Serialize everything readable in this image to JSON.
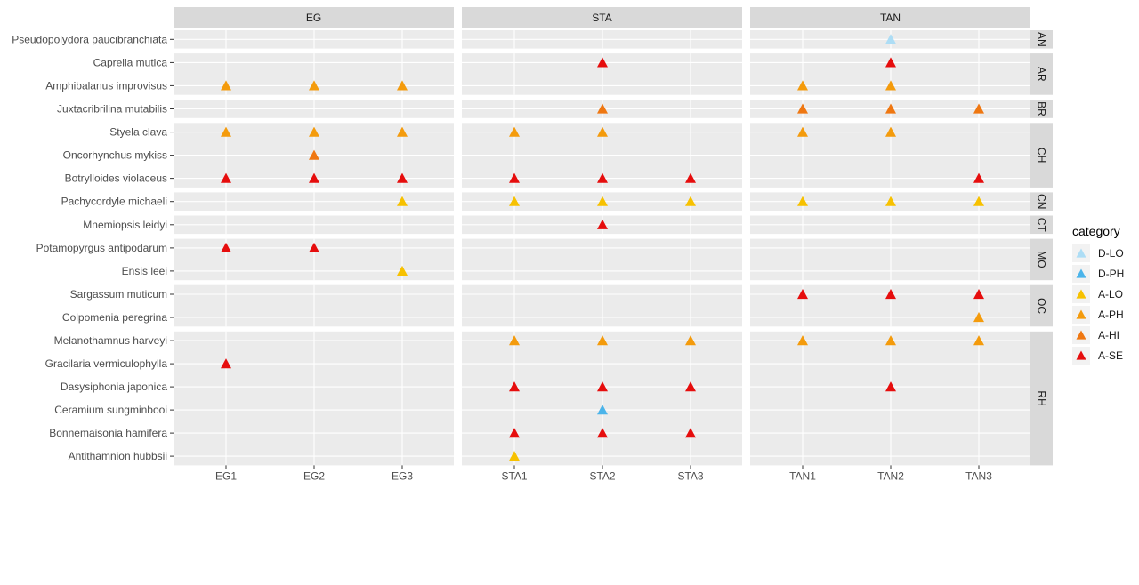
{
  "chart_data": {
    "type": "scatter",
    "marker": "triangle",
    "column_facets": [
      {
        "name": "EG",
        "x": [
          "EG1",
          "EG2",
          "EG3"
        ]
      },
      {
        "name": "STA",
        "x": [
          "STA1",
          "STA2",
          "STA3"
        ]
      },
      {
        "name": "TAN",
        "x": [
          "TAN1",
          "TAN2",
          "TAN3"
        ]
      }
    ],
    "row_facets": [
      {
        "name": "AN",
        "species": [
          "Pseudopolydora paucibranchiata"
        ]
      },
      {
        "name": "AR",
        "species": [
          "Caprella mutica",
          "Amphibalanus improvisus"
        ]
      },
      {
        "name": "BR",
        "species": [
          "Juxtacribrilina mutabilis"
        ]
      },
      {
        "name": "CH",
        "species": [
          "Styela clava",
          "Oncorhynchus mykiss",
          "Botrylloides violaceus"
        ]
      },
      {
        "name": "CN",
        "species": [
          "Pachycordyle michaeli"
        ]
      },
      {
        "name": "CT",
        "species": [
          "Mnemiopsis leidyi"
        ]
      },
      {
        "name": "MO",
        "species": [
          "Potamopyrgus antipodarum",
          "Ensis leei"
        ]
      },
      {
        "name": "OC",
        "species": [
          "Sargassum muticum",
          "Colpomenia peregrina"
        ]
      },
      {
        "name": "RH",
        "species": [
          "Melanothamnus harveyi",
          "Gracilaria vermiculophylla",
          "Dasysiphonia japonica",
          "Ceramium sungminbooi",
          "Bonnemaisonia hamifera",
          "Antithamnion hubbsii"
        ]
      }
    ],
    "legend": {
      "title": "category",
      "position": "right",
      "entries": [
        {
          "label": "D-LO",
          "color": "#ADDDF5"
        },
        {
          "label": "D-PH",
          "color": "#4BB4EA"
        },
        {
          "label": "A-LO",
          "color": "#F7C100"
        },
        {
          "label": "A-PH",
          "color": "#F49B0C"
        },
        {
          "label": "A-HI",
          "color": "#EF7711"
        },
        {
          "label": "A-SE",
          "color": "#E60D0D"
        }
      ]
    },
    "points": [
      {
        "species": "Pseudopolydora paucibranchiata",
        "x": "TAN2",
        "category": "D-LO"
      },
      {
        "species": "Caprella mutica",
        "x": "STA2",
        "category": "A-SE"
      },
      {
        "species": "Caprella mutica",
        "x": "TAN2",
        "category": "A-SE"
      },
      {
        "species": "Amphibalanus improvisus",
        "x": "EG1",
        "category": "A-PH"
      },
      {
        "species": "Amphibalanus improvisus",
        "x": "EG2",
        "category": "A-PH"
      },
      {
        "species": "Amphibalanus improvisus",
        "x": "EG3",
        "category": "A-PH"
      },
      {
        "species": "Amphibalanus improvisus",
        "x": "TAN1",
        "category": "A-PH"
      },
      {
        "species": "Amphibalanus improvisus",
        "x": "TAN2",
        "category": "A-PH"
      },
      {
        "species": "Juxtacribrilina mutabilis",
        "x": "STA2",
        "category": "A-HI"
      },
      {
        "species": "Juxtacribrilina mutabilis",
        "x": "TAN1",
        "category": "A-HI"
      },
      {
        "species": "Juxtacribrilina mutabilis",
        "x": "TAN2",
        "category": "A-HI"
      },
      {
        "species": "Juxtacribrilina mutabilis",
        "x": "TAN3",
        "category": "A-HI"
      },
      {
        "species": "Styela clava",
        "x": "EG1",
        "category": "A-PH"
      },
      {
        "species": "Styela clava",
        "x": "EG2",
        "category": "A-PH"
      },
      {
        "species": "Styela clava",
        "x": "EG3",
        "category": "A-PH"
      },
      {
        "species": "Styela clava",
        "x": "STA1",
        "category": "A-PH"
      },
      {
        "species": "Styela clava",
        "x": "STA2",
        "category": "A-PH"
      },
      {
        "species": "Styela clava",
        "x": "TAN1",
        "category": "A-PH"
      },
      {
        "species": "Styela clava",
        "x": "TAN2",
        "category": "A-PH"
      },
      {
        "species": "Oncorhynchus mykiss",
        "x": "EG2",
        "category": "A-HI"
      },
      {
        "species": "Botrylloides violaceus",
        "x": "EG1",
        "category": "A-SE"
      },
      {
        "species": "Botrylloides violaceus",
        "x": "EG2",
        "category": "A-SE"
      },
      {
        "species": "Botrylloides violaceus",
        "x": "EG3",
        "category": "A-SE"
      },
      {
        "species": "Botrylloides violaceus",
        "x": "STA1",
        "category": "A-SE"
      },
      {
        "species": "Botrylloides violaceus",
        "x": "STA2",
        "category": "A-SE"
      },
      {
        "species": "Botrylloides violaceus",
        "x": "STA3",
        "category": "A-SE"
      },
      {
        "species": "Botrylloides violaceus",
        "x": "TAN3",
        "category": "A-SE"
      },
      {
        "species": "Pachycordyle michaeli",
        "x": "EG3",
        "category": "A-LO"
      },
      {
        "species": "Pachycordyle michaeli",
        "x": "STA1",
        "category": "A-LO"
      },
      {
        "species": "Pachycordyle michaeli",
        "x": "STA2",
        "category": "A-LO"
      },
      {
        "species": "Pachycordyle michaeli",
        "x": "STA3",
        "category": "A-LO"
      },
      {
        "species": "Pachycordyle michaeli",
        "x": "TAN1",
        "category": "A-LO"
      },
      {
        "species": "Pachycordyle michaeli",
        "x": "TAN2",
        "category": "A-LO"
      },
      {
        "species": "Pachycordyle michaeli",
        "x": "TAN3",
        "category": "A-LO"
      },
      {
        "species": "Mnemiopsis leidyi",
        "x": "STA2",
        "category": "A-SE"
      },
      {
        "species": "Potamopyrgus antipodarum",
        "x": "EG1",
        "category": "A-SE"
      },
      {
        "species": "Potamopyrgus antipodarum",
        "x": "EG2",
        "category": "A-SE"
      },
      {
        "species": "Ensis leei",
        "x": "EG3",
        "category": "A-LO"
      },
      {
        "species": "Sargassum muticum",
        "x": "TAN1",
        "category": "A-SE"
      },
      {
        "species": "Sargassum muticum",
        "x": "TAN2",
        "category": "A-SE"
      },
      {
        "species": "Sargassum muticum",
        "x": "TAN3",
        "category": "A-SE"
      },
      {
        "species": "Colpomenia peregrina",
        "x": "TAN3",
        "category": "A-PH"
      },
      {
        "species": "Melanothamnus harveyi",
        "x": "STA1",
        "category": "A-PH"
      },
      {
        "species": "Melanothamnus harveyi",
        "x": "STA2",
        "category": "A-PH"
      },
      {
        "species": "Melanothamnus harveyi",
        "x": "STA3",
        "category": "A-PH"
      },
      {
        "species": "Melanothamnus harveyi",
        "x": "TAN1",
        "category": "A-PH"
      },
      {
        "species": "Melanothamnus harveyi",
        "x": "TAN2",
        "category": "A-PH"
      },
      {
        "species": "Melanothamnus harveyi",
        "x": "TAN3",
        "category": "A-PH"
      },
      {
        "species": "Gracilaria vermiculophylla",
        "x": "EG1",
        "category": "A-SE"
      },
      {
        "species": "Dasysiphonia japonica",
        "x": "STA1",
        "category": "A-SE"
      },
      {
        "species": "Dasysiphonia japonica",
        "x": "STA2",
        "category": "A-SE"
      },
      {
        "species": "Dasysiphonia japonica",
        "x": "STA3",
        "category": "A-SE"
      },
      {
        "species": "Dasysiphonia japonica",
        "x": "TAN2",
        "category": "A-SE"
      },
      {
        "species": "Ceramium sungminbooi",
        "x": "STA2",
        "category": "D-PH"
      },
      {
        "species": "Bonnemaisonia hamifera",
        "x": "STA1",
        "category": "A-SE"
      },
      {
        "species": "Bonnemaisonia hamifera",
        "x": "STA2",
        "category": "A-SE"
      },
      {
        "species": "Bonnemaisonia hamifera",
        "x": "STA3",
        "category": "A-SE"
      },
      {
        "species": "Antithamnion hubbsii",
        "x": "STA1",
        "category": "A-LO"
      }
    ]
  }
}
